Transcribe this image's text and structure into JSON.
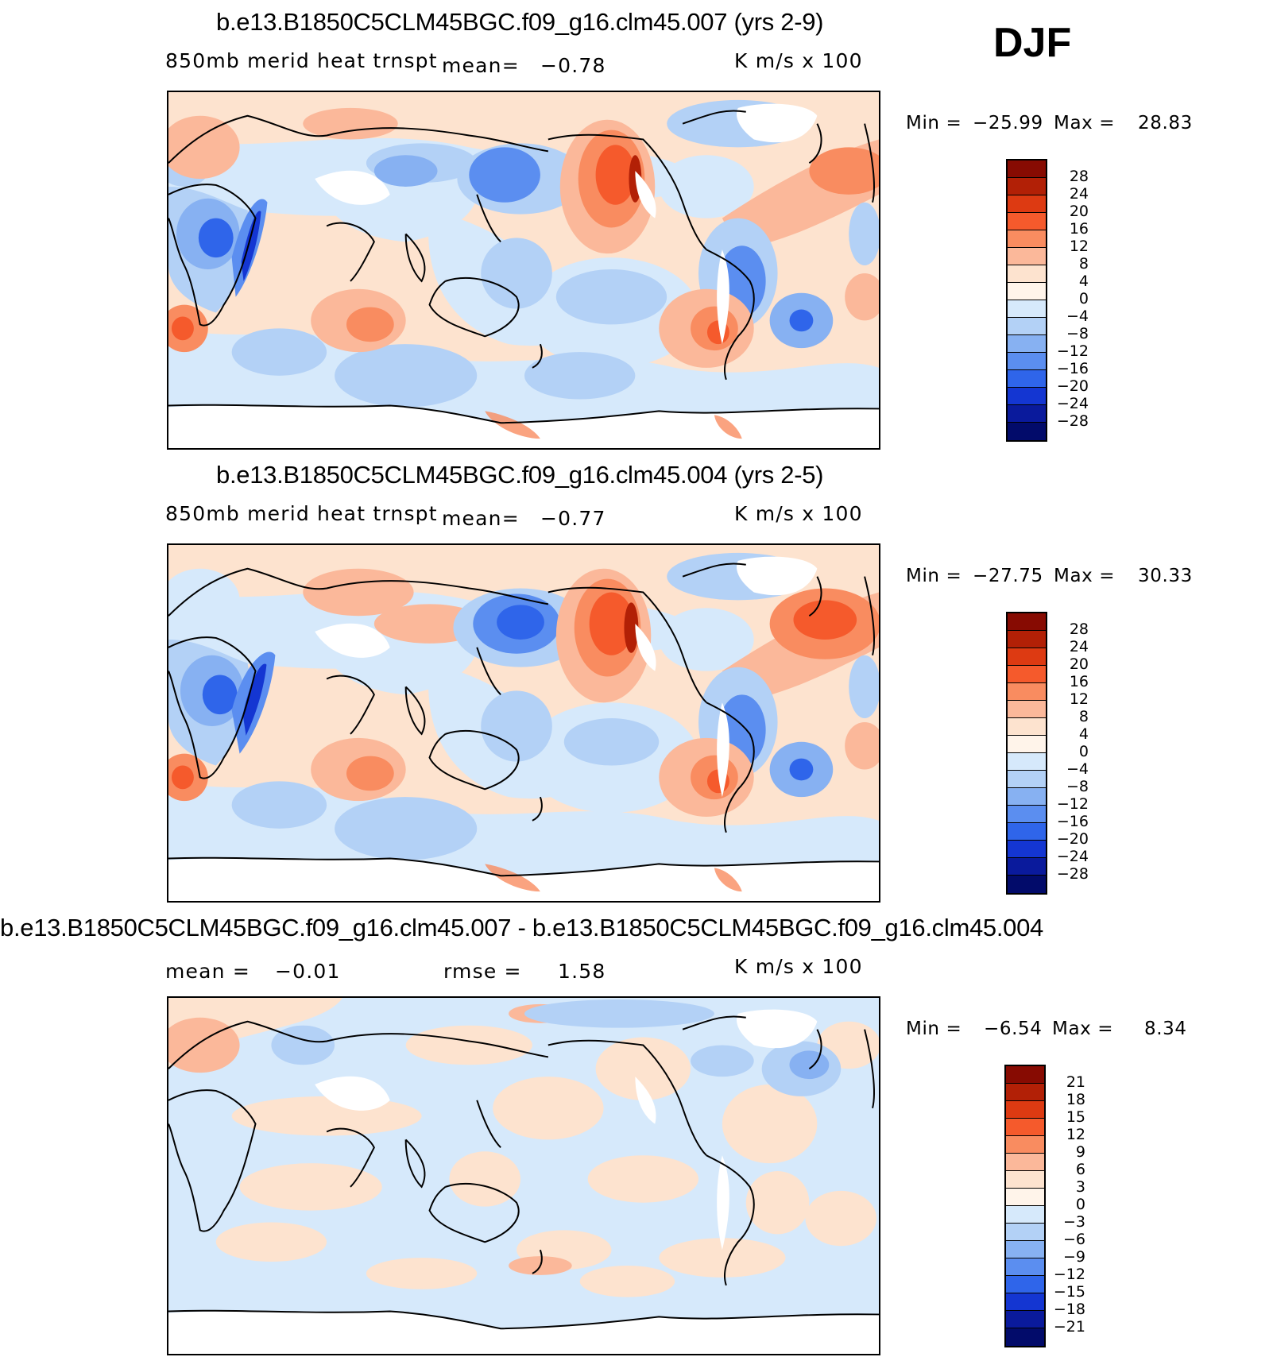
{
  "season": "DJF",
  "colors": {
    "positive": [
      "#fde3cf",
      "#fbb89a",
      "#f98c60",
      "#f55a2c",
      "#dd3a12",
      "#b22006",
      "#870b02"
    ],
    "negative": [
      "#d6e9fb",
      "#b3d1f6",
      "#87b1f2",
      "#5b8ef0",
      "#2f65ea",
      "#1436d2",
      "#0a1a9c",
      "#020b6a"
    ],
    "zero_band": "#fff4ea",
    "land_void": "#ffffff"
  },
  "panels": [
    {
      "title": "b.e13.B1850C5CLM45BGC.f09_g16.clm45.007 (yrs 2-9)",
      "variable": "850mb merid heat trnspt",
      "stat1_label": "mean=",
      "stat1_value": "−0.78",
      "units": "K m/s x 100",
      "min_label": "Min =",
      "min_value": "−25.99",
      "max_label": "Max =",
      "max_value": "28.83",
      "colorbar_labels": [
        "28",
        "24",
        "20",
        "16",
        "12",
        "8",
        "4",
        "0",
        "−4",
        "−8",
        "−12",
        "−16",
        "−20",
        "−24",
        "−28"
      ]
    },
    {
      "title": "b.e13.B1850C5CLM45BGC.f09_g16.clm45.004 (yrs 2-5)",
      "variable": "850mb merid heat trnspt",
      "stat1_label": "mean=",
      "stat1_value": "−0.77",
      "units": "K m/s x 100",
      "min_label": "Min =",
      "min_value": "−27.75",
      "max_label": "Max =",
      "max_value": "30.33",
      "colorbar_labels": [
        "28",
        "24",
        "20",
        "16",
        "12",
        "8",
        "4",
        "0",
        "−4",
        "−8",
        "−12",
        "−16",
        "−20",
        "−24",
        "−28"
      ]
    },
    {
      "title": "b.e13.B1850C5CLM45BGC.f09_g16.clm45.007 - b.e13.B1850C5CLM45BGC.f09_g16.clm45.004",
      "stat1_label": "mean =",
      "stat1_value": "−0.01",
      "stat2_label": "rmse =",
      "stat2_value": "1.58",
      "units": "K m/s x 100",
      "min_label": "Min =",
      "min_value": "−6.54",
      "max_label": "Max =",
      "max_value": "8.34",
      "colorbar_labels": [
        "21",
        "18",
        "15",
        "12",
        "9",
        "6",
        "3",
        "0",
        "−3",
        "−6",
        "−9",
        "−12",
        "−15",
        "−18",
        "−21"
      ]
    }
  ]
}
